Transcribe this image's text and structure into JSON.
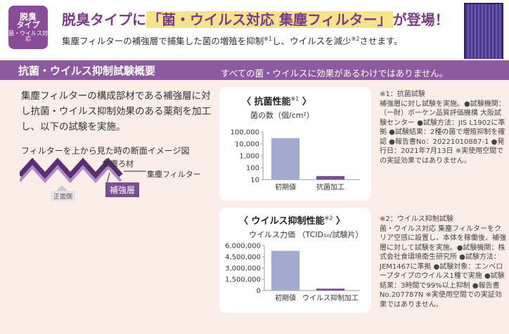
{
  "badge": {
    "line1": "脱臭",
    "line2": "タイプ",
    "line3": "菌・ウイルス対応"
  },
  "headline": {
    "before": "脱臭タイプに",
    "highlight": "「菌・ウイルス対応 集塵フィルター」",
    "after": "が登場！"
  },
  "subhead": {
    "part1": "集塵フィルターの補強層で捕集した菌の増殖を抑制",
    "mark1": "※1",
    "part2": "し、ウイルスを減少",
    "mark2": "※2",
    "part3": "させます。"
  },
  "banner": {
    "title": "抗菌・ウイルス抑制試験概要",
    "note": "すべての菌・ウイルスに効果があるわけではありません。"
  },
  "intro": "集塵フィルターの構成部材である補強層に対し抗菌・ウイルス抑制効果のある薬剤を加工し、以下の試験を実施。",
  "diagram": {
    "title": "フィルターを上から見た時の断面イメージ図",
    "material_label": "集塵ろ材",
    "filter_label": "集塵フィルター",
    "reinforce_label": "補強層",
    "front_label": "正面側"
  },
  "colors": {
    "purple": "#8d5a9f",
    "bar": "#a3aacf",
    "bar_dark": "#7b4d93",
    "panel": "#fbeee9"
  },
  "chart1": {
    "title": "〈 抗菌性能",
    "mark": "※1",
    "after": " 〉",
    "unit": "菌の数（個/cm²）"
  },
  "chart2": {
    "title": "〈 ウイルス抑制性能",
    "mark": "※2",
    "after": " 〉",
    "unit": "ウイルス力価 （TCID₅₀/試験片）"
  },
  "note1": "※1：抗菌試験\n補強層に対し試験を実施。●試験機関：（一財）ボーケン品質評価機構 大阪試験センター ●試験方法：JIS L1902に準拠 ●試験結果：2種の菌で増殖抑制を確認 ●報告書No：20221010887-1 ●発行日：2021年7月13日 ※実使用空間での実証効果ではありません。",
  "note2": "※2：ウイルス抑制試験\n菌・ウイルス対応 集塵フィルターをクリア空感に設置し、本体を稼働後、補強層に対して試験を実施。●試験機関：株式会社食環境衛生研究所 ●試験方法：JEM1467に準拠 ●試験対象：エンベロープタイプのウイルス1種で実施 ●試験結果：3時間で99%以上抑制 ●報告書No.207787N ※実使用空間での実証効果ではありません。",
  "chart_data": [
    {
      "type": "bar",
      "title": "抗菌性能",
      "ylabel": "菌の数（個/cm²）",
      "yscale": "log",
      "yticks": [
        "100,000",
        "10,000",
        "1,000",
        "100",
        "10"
      ],
      "ylim": [
        10,
        100000
      ],
      "categories": [
        "初期値",
        "抗菌加工"
      ],
      "values": [
        30000,
        20
      ]
    },
    {
      "type": "bar",
      "title": "ウイルス抑制性能",
      "ylabel": "ウイルス力価 （TCID₅₀/試験片）",
      "yticks": [
        "6,000,000",
        "4,500,000",
        "3,000,000",
        "1,500,000",
        "0"
      ],
      "ylim": [
        0,
        6000000
      ],
      "categories": [
        "初期値",
        "ウイルス抑制加工"
      ],
      "values": [
        5300000,
        250000
      ]
    }
  ]
}
